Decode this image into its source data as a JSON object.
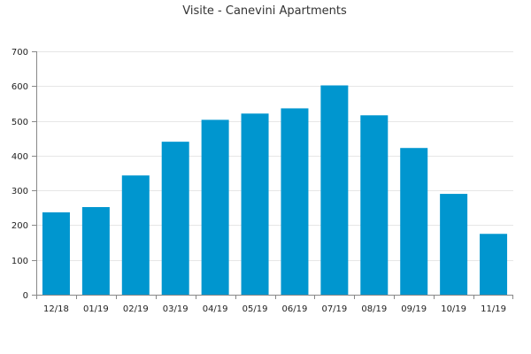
{
  "chart_data": {
    "type": "bar",
    "title": "Visite - Canevini Apartments",
    "xlabel": "",
    "ylabel": "",
    "categories": [
      "12/18",
      "01/19",
      "02/19",
      "03/19",
      "04/19",
      "05/19",
      "06/19",
      "07/19",
      "08/19",
      "09/19",
      "10/19",
      "11/19"
    ],
    "values": [
      237,
      252,
      343,
      440,
      503,
      521,
      536,
      602,
      516,
      422,
      290,
      175
    ],
    "ylim": [
      0,
      700
    ],
    "yticks": [
      "0",
      "100",
      "200",
      "300",
      "400",
      "500",
      "600",
      "700"
    ],
    "grid": true,
    "legend": "none",
    "bar_color": "#0096cf"
  }
}
